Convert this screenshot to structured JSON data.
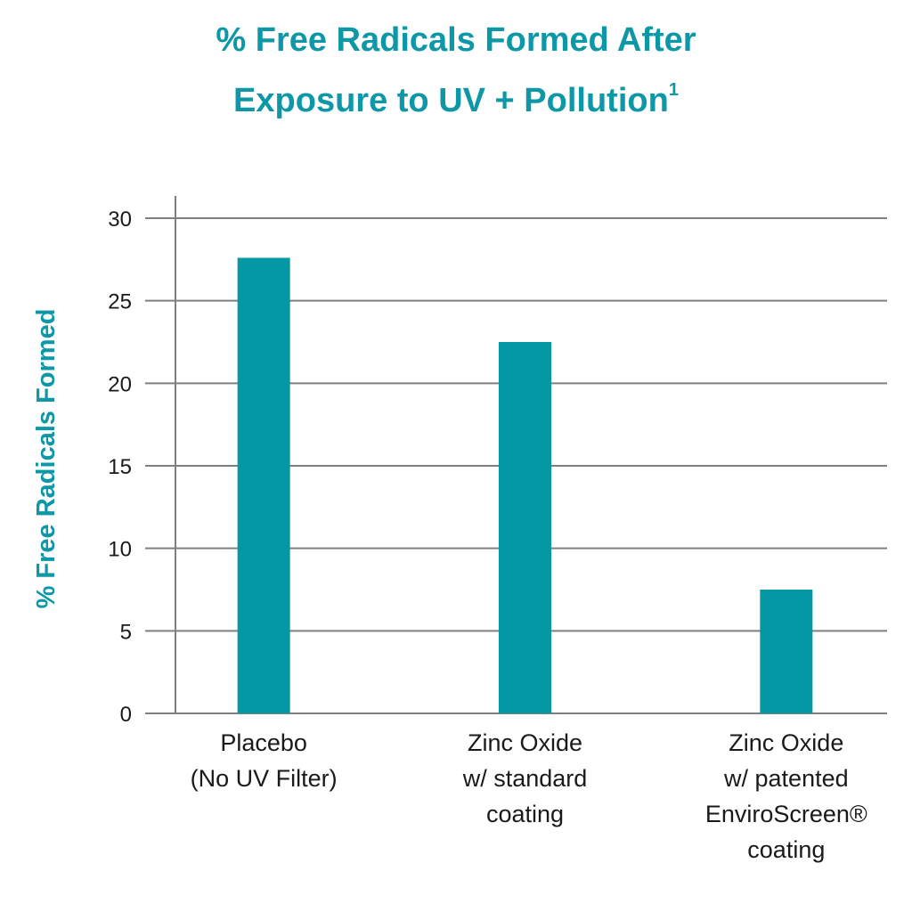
{
  "accent_color": "#0e97a6",
  "bar_color": "#0497a4",
  "grid_color": "#7f7f7f",
  "chart_data": {
    "type": "bar",
    "title_lines": [
      "% Free Radicals Formed After",
      "Exposure to UV + Pollution"
    ],
    "title_superscript": "1",
    "ylabel": "% Free Radicals Formed",
    "xlabel": "",
    "ylim": [
      0,
      30
    ],
    "yticks": [
      0,
      5,
      10,
      15,
      20,
      25,
      30
    ],
    "grid": true,
    "legend": "none",
    "categories": [
      {
        "lines": [
          "Placebo",
          "(No UV Filter)"
        ]
      },
      {
        "lines": [
          "Zinc Oxide",
          "w/ standard",
          "coating"
        ]
      },
      {
        "lines": [
          "Zinc Oxide",
          "w/ patented",
          "EnviroScreen®",
          "coating"
        ]
      }
    ],
    "values": [
      27.6,
      22.5,
      7.5
    ]
  }
}
